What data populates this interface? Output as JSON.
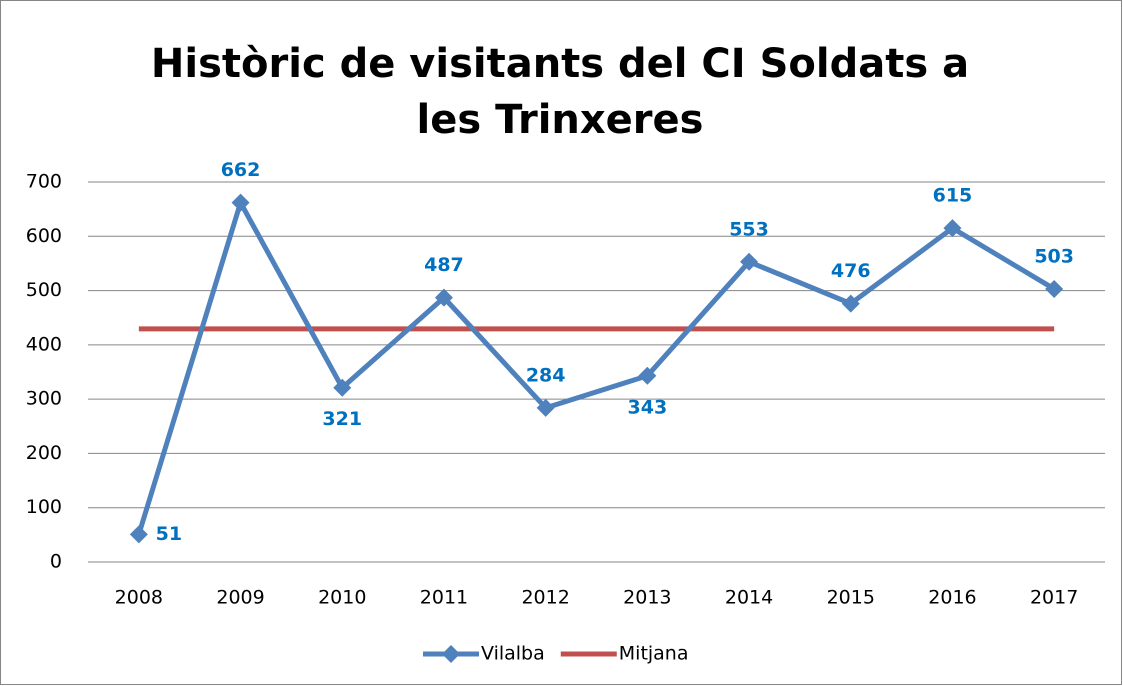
{
  "chart_data": {
    "type": "line",
    "title": "Històric de visitants del CI Soldats a les Trinxeres",
    "categories": [
      "2008",
      "2009",
      "2010",
      "2011",
      "2012",
      "2013",
      "2014",
      "2015",
      "2016",
      "2017"
    ],
    "series": [
      {
        "name": "Vilalba",
        "color": "#4f81bd",
        "marker": "diamond",
        "values": [
          51,
          662,
          321,
          487,
          284,
          343,
          553,
          476,
          615,
          503
        ]
      },
      {
        "name": "Mitjana",
        "color": "#c0504d",
        "values": [
          429.5,
          429.5,
          429.5,
          429.5,
          429.5,
          429.5,
          429.5,
          429.5,
          429.5,
          429.5
        ]
      }
    ],
    "data_labels_color": "#0070c0",
    "ylim": [
      0,
      700
    ],
    "yticks": [
      0,
      100,
      200,
      300,
      400,
      500,
      600,
      700
    ],
    "grid": true,
    "legend": "bottom"
  }
}
